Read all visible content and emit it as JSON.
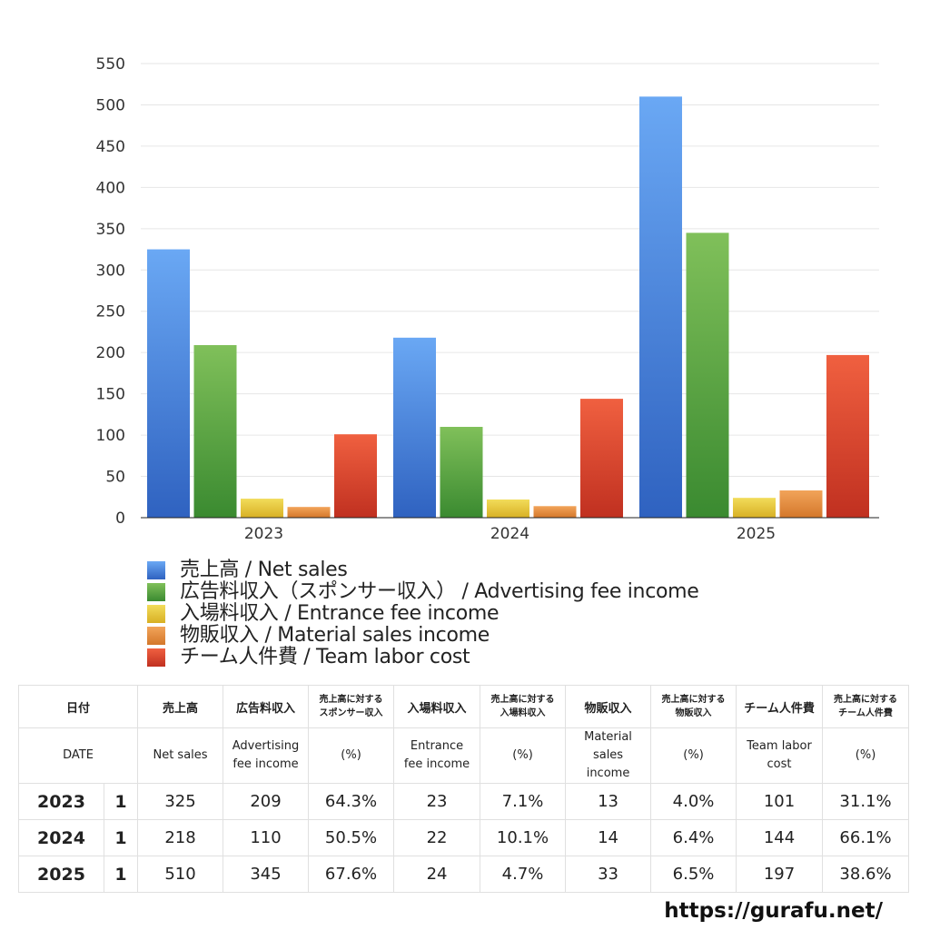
{
  "chart_data": {
    "type": "bar",
    "categories": [
      "2023",
      "2024",
      "2025"
    ],
    "ylim": [
      0,
      550
    ],
    "yticks": [
      0,
      50,
      100,
      150,
      200,
      250,
      300,
      350,
      400,
      450,
      500,
      550
    ],
    "grid": true,
    "legend_position": "bottom",
    "series": [
      {
        "name": "売上高 / Net sales",
        "values": [
          325,
          218,
          510
        ],
        "color": "#3a80e0"
      },
      {
        "name": "広告料収入（スポンサー収入） / Advertising fee income",
        "values": [
          209,
          110,
          345
        ],
        "color": "#4ea43a"
      },
      {
        "name": "入場料収入 / Entrance fee income",
        "values": [
          23,
          22,
          24
        ],
        "color": "#e8c530"
      },
      {
        "name": "物販収入 / Material sales income",
        "values": [
          13,
          14,
          33
        ],
        "color": "#e3893a"
      },
      {
        "name": "チーム人件費 / Team labor cost",
        "values": [
          101,
          144,
          197
        ],
        "color": "#d9482a"
      }
    ]
  },
  "gradients": [
    {
      "top": "#6aa8f4",
      "bottom": "#2f62c0"
    },
    {
      "top": "#80c05a",
      "bottom": "#3a8a30"
    },
    {
      "top": "#f2dc5a",
      "bottom": "#d8b024"
    },
    {
      "top": "#f2a45a",
      "bottom": "#d4772a"
    },
    {
      "top": "#f06040",
      "bottom": "#c03020"
    }
  ],
  "table": {
    "header_ja": {
      "date": "日付",
      "net_sales": "売上高",
      "adv": "広告料収入",
      "adv_ratio": [
        "売上高に対する",
        "スポンサー収入"
      ],
      "ent": "入場料収入",
      "ent_ratio": [
        "売上高に対する",
        "入場料収入"
      ],
      "mat": "物販収入",
      "mat_ratio": [
        "売上高に対する",
        "物販収入"
      ],
      "labor": "チーム人件費",
      "labor_ratio": [
        "売上高に対する",
        "チーム人件費"
      ]
    },
    "header_en": {
      "date": "DATE",
      "net_sales": "Net sales",
      "adv": [
        "Advertising",
        "fee income"
      ],
      "adv_ratio": "(%)",
      "ent": [
        "Entrance",
        "fee income"
      ],
      "ent_ratio": "(%)",
      "mat": [
        "Material",
        "sales",
        "income"
      ],
      "mat_ratio": "(%)",
      "labor": [
        "Team labor",
        "cost"
      ],
      "labor_ratio": "(%)"
    },
    "rows": [
      {
        "year": "2023",
        "count": "1",
        "net_sales": "325",
        "adv": "209",
        "adv_ratio": "64.3%",
        "ent": "23",
        "ent_ratio": "7.1%",
        "mat": "13",
        "mat_ratio": "4.0%",
        "labor": "101",
        "labor_ratio": "31.1%"
      },
      {
        "year": "2024",
        "count": "1",
        "net_sales": "218",
        "adv": "110",
        "adv_ratio": "50.5%",
        "ent": "22",
        "ent_ratio": "10.1%",
        "mat": "14",
        "mat_ratio": "6.4%",
        "labor": "144",
        "labor_ratio": "66.1%"
      },
      {
        "year": "2025",
        "count": "1",
        "net_sales": "510",
        "adv": "345",
        "adv_ratio": "67.6%",
        "ent": "24",
        "ent_ratio": "4.7%",
        "mat": "33",
        "mat_ratio": "6.5%",
        "labor": "197",
        "labor_ratio": "38.6%"
      }
    ]
  },
  "footer": {
    "url": "https://gurafu.net/"
  }
}
